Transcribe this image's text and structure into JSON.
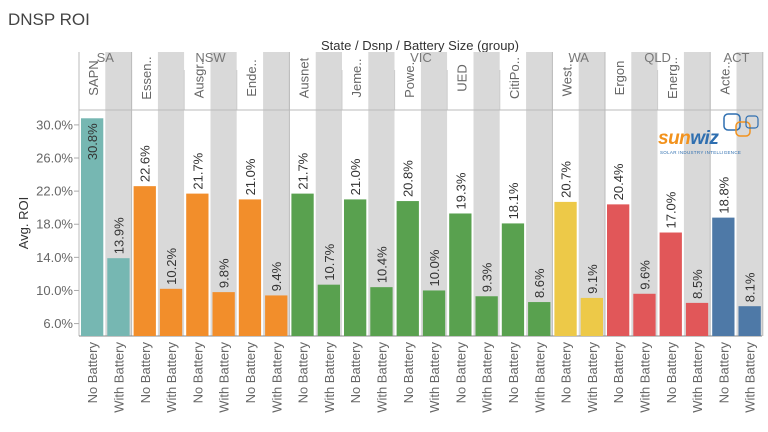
{
  "title": "DNSP ROI",
  "chart_data": {
    "type": "bar",
    "title": "DNSP ROI",
    "header_label": "State / Dsnp / Battery Size (group)",
    "xlabel": "",
    "ylabel": "Avg. ROI",
    "ylim": [
      4.5,
      31.8
    ],
    "yticks": [
      "6.0%",
      "10.0%",
      "14.0%",
      "18.0%",
      "22.0%",
      "26.0%",
      "30.0%"
    ],
    "ytick_values": [
      6,
      10,
      14,
      18,
      22,
      26,
      30
    ],
    "categories": [
      "No Battery",
      "With Battery"
    ],
    "states": [
      {
        "name": "SA",
        "color": "#76b7b2",
        "dnsps": [
          {
            "name": "SAPN",
            "values": [
              30.8,
              13.9
            ],
            "labels": [
              "30.8%",
              "13.9%"
            ]
          }
        ]
      },
      {
        "name": "NSW",
        "color": "#f28e2b",
        "dnsps": [
          {
            "name": "Essen..",
            "values": [
              22.6,
              10.2
            ],
            "labels": [
              "22.6%",
              "10.2%"
            ]
          },
          {
            "name": "Ausgr..",
            "values": [
              21.7,
              9.8
            ],
            "labels": [
              "21.7%",
              "9.8%"
            ]
          },
          {
            "name": "Ende..",
            "values": [
              21.0,
              9.4
            ],
            "labels": [
              "21.0%",
              "9.4%"
            ]
          }
        ]
      },
      {
        "name": "VIC",
        "color": "#59a14f",
        "dnsps": [
          {
            "name": "Ausnet",
            "values": [
              21.7,
              10.7
            ],
            "labels": [
              "21.7%",
              "10.7%"
            ]
          },
          {
            "name": "Jeme..",
            "values": [
              21.0,
              10.4
            ],
            "labels": [
              "21.0%",
              "10.4%"
            ]
          },
          {
            "name": "Powe..",
            "values": [
              20.8,
              10.0
            ],
            "labels": [
              "20.8%",
              "10.0%"
            ]
          },
          {
            "name": "UED",
            "values": [
              19.3,
              9.3
            ],
            "labels": [
              "19.3%",
              "9.3%"
            ]
          },
          {
            "name": "CitiPo..",
            "values": [
              18.1,
              8.6
            ],
            "labels": [
              "18.1%",
              "8.6%"
            ]
          }
        ]
      },
      {
        "name": "WA",
        "color": "#edc948",
        "dnsps": [
          {
            "name": "West..",
            "values": [
              20.7,
              9.1
            ],
            "labels": [
              "20.7%",
              "9.1%"
            ]
          }
        ]
      },
      {
        "name": "QLD",
        "color": "#e15759",
        "dnsps": [
          {
            "name": "Ergon",
            "values": [
              20.4,
              9.6
            ],
            "labels": [
              "20.4%",
              "9.6%"
            ]
          },
          {
            "name": "Energ..",
            "values": [
              17.0,
              8.5
            ],
            "labels": [
              "17.0%",
              "8.5%"
            ]
          }
        ]
      },
      {
        "name": "ACT",
        "color": "#4e79a7",
        "dnsps": [
          {
            "name": "Acte..",
            "values": [
              18.8,
              8.1
            ],
            "labels": [
              "18.8%",
              "8.1%"
            ]
          }
        ]
      }
    ]
  },
  "logo": {
    "text_a": "sun",
    "text_b": "wiz",
    "tagline": "SOLAR INDUSTRY INTELLIGENCE"
  }
}
